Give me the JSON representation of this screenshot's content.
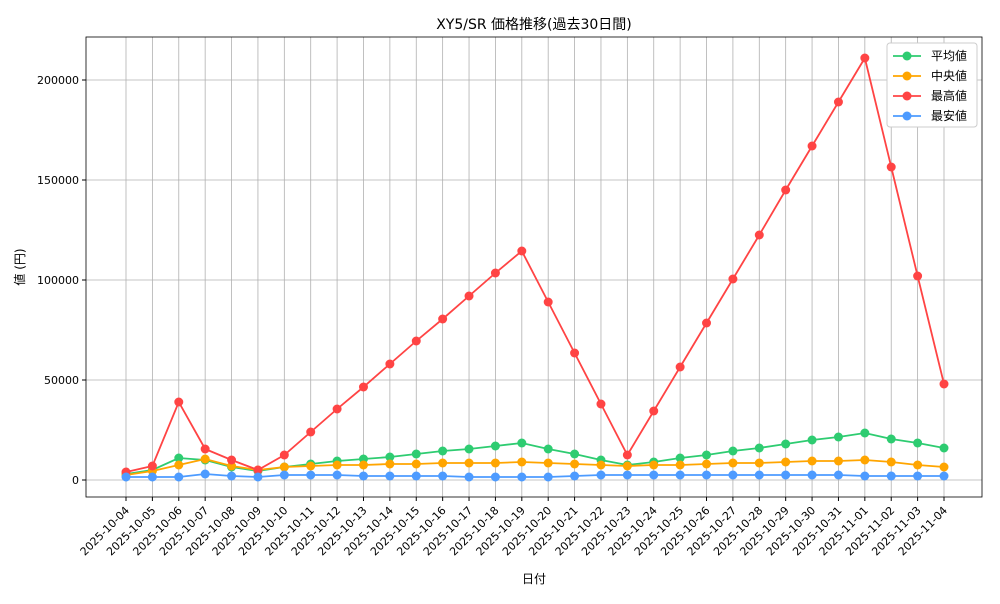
{
  "chart_data": {
    "type": "line",
    "title": "XY5/SR 価格推移(過去30日間)",
    "xlabel": "日付",
    "ylabel": "値 (円)",
    "ylim": [
      -8500,
      221500
    ],
    "yticks": [
      0,
      50000,
      100000,
      150000,
      200000
    ],
    "grid": true,
    "legend_position": "top-right",
    "x": [
      "2025-10-04",
      "2025-10-05",
      "2025-10-06",
      "2025-10-07",
      "2025-10-08",
      "2025-10-09",
      "2025-10-10",
      "2025-10-11",
      "2025-10-12",
      "2025-10-13",
      "2025-10-14",
      "2025-10-15",
      "2025-10-16",
      "2025-10-17",
      "2025-10-18",
      "2025-10-19",
      "2025-10-20",
      "2025-10-21",
      "2025-10-22",
      "2025-10-23",
      "2025-10-24",
      "2025-10-25",
      "2025-10-26",
      "2025-10-27",
      "2025-10-28",
      "2025-10-29",
      "2025-10-30",
      "2025-10-31",
      "2025-11-01",
      "2025-11-02",
      "2025-11-03",
      "2025-11-04"
    ],
    "series": [
      {
        "name": "平均値",
        "color": "#2ecc71",
        "values": [
          3000,
          5000,
          11000,
          10000,
          6500,
          4500,
          6500,
          8000,
          9500,
          10500,
          11500,
          13000,
          14500,
          15500,
          17000,
          18500,
          15500,
          13000,
          10000,
          7500,
          9000,
          11000,
          12500,
          14500,
          16000,
          18000,
          20000,
          21500,
          23500,
          20500,
          18500,
          16000
        ]
      },
      {
        "name": "中央値",
        "color": "#ffa500",
        "values": [
          2500,
          4500,
          7500,
          10500,
          7000,
          5000,
          6500,
          7000,
          7500,
          7500,
          8000,
          8000,
          8500,
          8500,
          8500,
          9000,
          8500,
          8000,
          7500,
          7000,
          7500,
          7500,
          8000,
          8500,
          8500,
          9000,
          9500,
          9500,
          10000,
          9000,
          7500,
          6500
        ]
      },
      {
        "name": "最高値",
        "color": "#ff4444",
        "values": [
          4000,
          7000,
          39000,
          15500,
          10000,
          5000,
          12500,
          24000,
          35500,
          46500,
          58000,
          69500,
          80500,
          92000,
          103500,
          114500,
          89000,
          63500,
          38000,
          12500,
          34500,
          56500,
          78500,
          100500,
          122500,
          145000,
          167000,
          189000,
          211000,
          156500,
          102000,
          48000
        ]
      },
      {
        "name": "最安値",
        "color": "#4d9bff",
        "values": [
          1500,
          1500,
          1500,
          3000,
          2000,
          1500,
          2500,
          2500,
          2500,
          2000,
          2000,
          2000,
          2000,
          1500,
          1500,
          1500,
          1500,
          2000,
          2500,
          2500,
          2500,
          2500,
          2500,
          2500,
          2500,
          2500,
          2500,
          2500,
          2000,
          2000,
          2000,
          2000
        ]
      }
    ]
  }
}
